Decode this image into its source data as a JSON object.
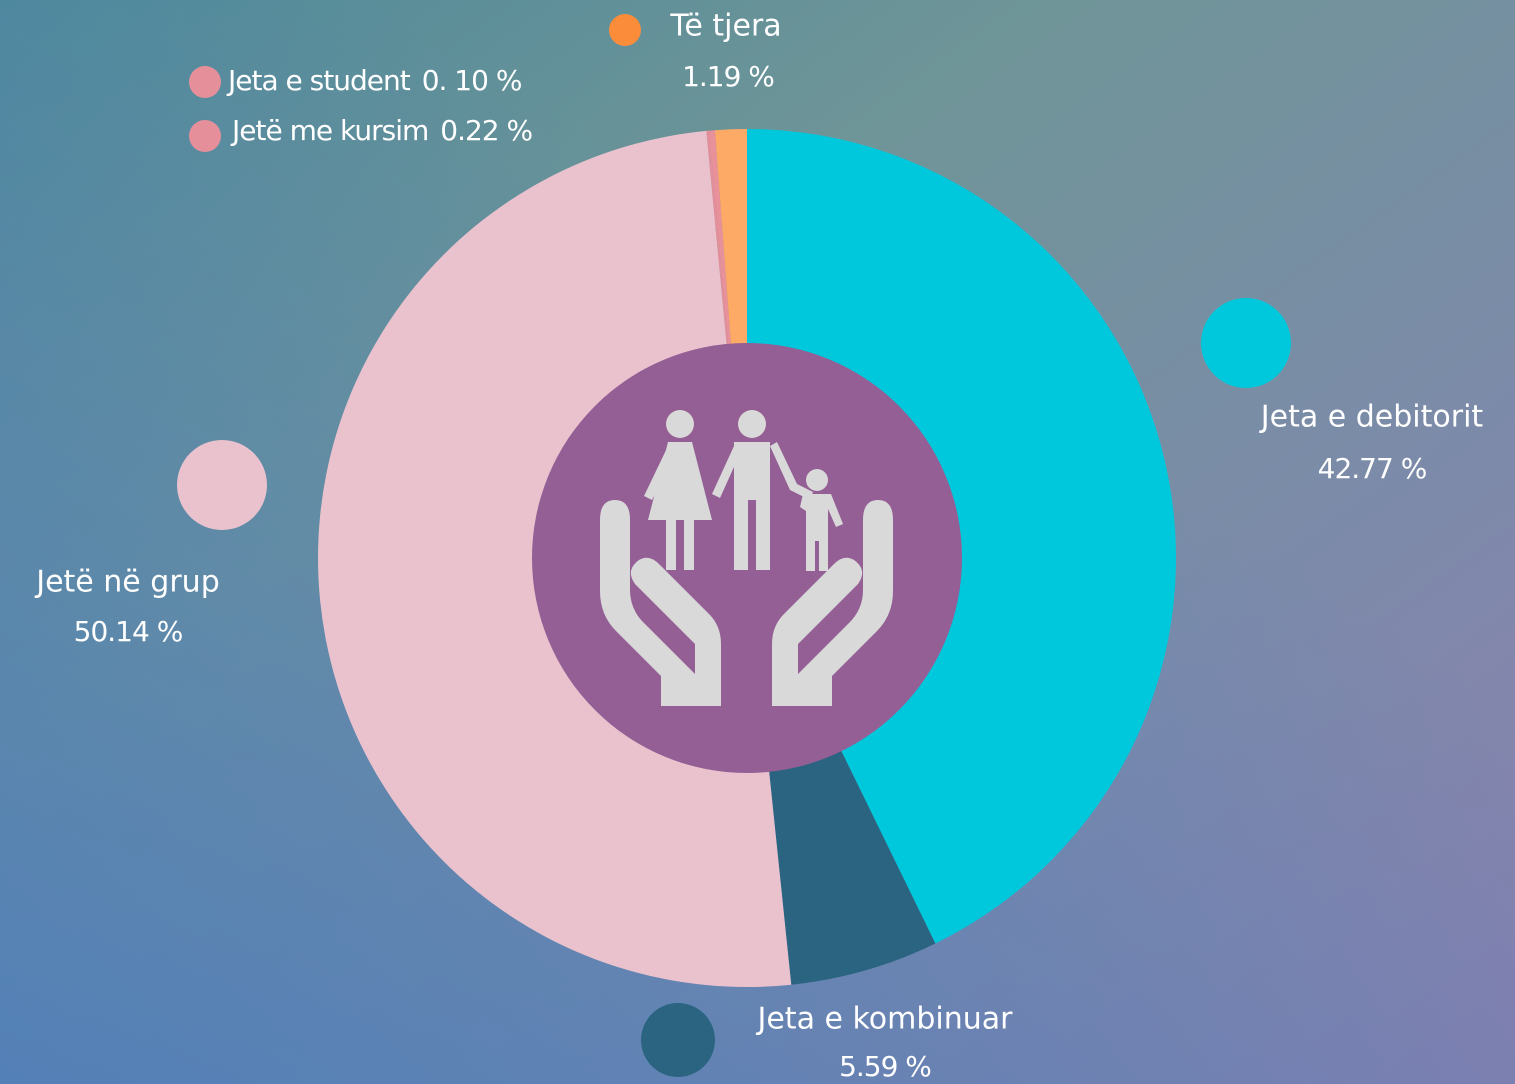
{
  "chart_data": {
    "type": "pie",
    "categories": [
      "Jeta e debitorit",
      "Jeta e kombinuar",
      "Jetë në grup",
      "Jeta e student",
      "Jetë  me kursim",
      "Të tjera"
    ],
    "values": [
      42.77,
      5.59,
      50.14,
      0.1,
      0.22,
      1.19
    ],
    "value_labels": [
      "42.77 %",
      "5.59 %",
      "50.14 %",
      "0. 10 %",
      "0.22 %",
      "1.19 %"
    ],
    "colors": [
      "#00c8dc",
      "#2a6480",
      "#e9c2cd",
      "#e58f9a",
      "#e8919a",
      "#fdaa66"
    ]
  }
}
